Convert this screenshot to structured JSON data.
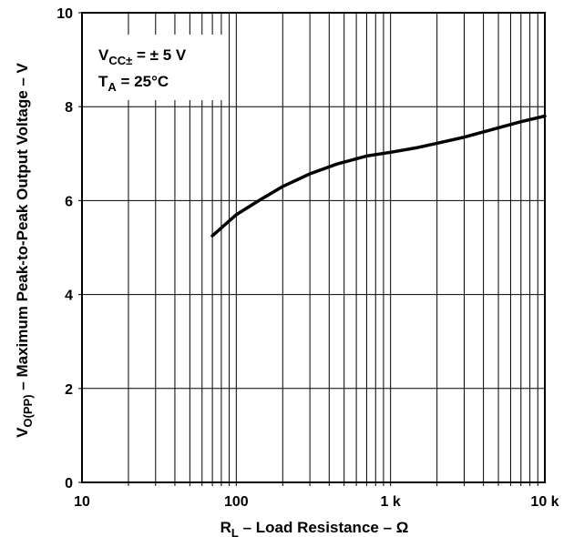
{
  "chart_data": {
    "type": "line",
    "x_scale": "log",
    "xlim": [
      10,
      10000
    ],
    "ylim": [
      0,
      10
    ],
    "grid": true,
    "x_ticks": [
      {
        "value": 10,
        "label": "10"
      },
      {
        "value": 100,
        "label": "100"
      },
      {
        "value": 1000,
        "label": "1 k"
      },
      {
        "value": 10000,
        "label": "10 k"
      }
    ],
    "y_ticks": [
      {
        "value": 0,
        "label": "0"
      },
      {
        "value": 2,
        "label": "2"
      },
      {
        "value": 4,
        "label": "4"
      },
      {
        "value": 6,
        "label": "6"
      },
      {
        "value": 8,
        "label": "8"
      },
      {
        "value": 10,
        "label": "10"
      }
    ],
    "xlabel": {
      "main": "R",
      "sub": "L",
      "rest": " – Load Resistance – Ω"
    },
    "ylabel": {
      "main": "V",
      "sub": "O(PP)",
      "rest": " – Maximum Peak-to-Peak Output Voltage – V"
    },
    "annotation": {
      "line1_main": "V",
      "line1_sub": "CC±",
      "line1_rest": " = ± 5 V",
      "line2_main": "T",
      "line2_sub": "A",
      "line2_rest": " = 25°C"
    },
    "series": [
      {
        "x": [
          70,
          100,
          140,
          200,
          300,
          450,
          700,
          1000,
          1500,
          2000,
          3000,
          5000,
          7000,
          10000
        ],
        "y": [
          5.25,
          5.7,
          6.0,
          6.3,
          6.57,
          6.78,
          6.95,
          7.03,
          7.13,
          7.22,
          7.35,
          7.55,
          7.68,
          7.8
        ]
      }
    ]
  }
}
